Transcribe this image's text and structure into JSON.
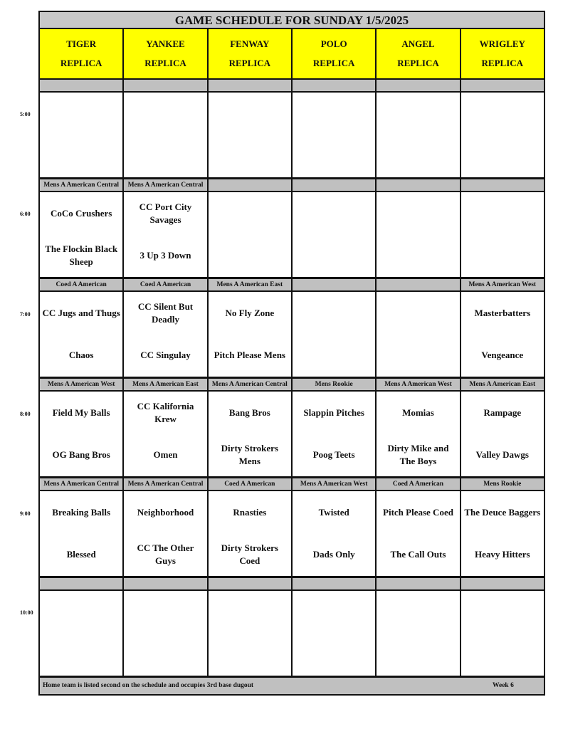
{
  "title": "GAME SCHEDULE FOR SUNDAY 1/5/2025",
  "fields": [
    [
      "TIGER",
      "REPLICA"
    ],
    [
      "YANKEE",
      "REPLICA"
    ],
    [
      "FENWAY",
      "REPLICA"
    ],
    [
      "POLO",
      "REPLICA"
    ],
    [
      "ANGEL",
      "REPLICA"
    ],
    [
      "WRIGLEY",
      "REPLICA"
    ]
  ],
  "slots": [
    {
      "time": "5:00",
      "divisions": [
        "",
        "",
        "",
        "",
        "",
        ""
      ],
      "games": [
        [
          "",
          ""
        ],
        [
          "",
          ""
        ],
        [
          "",
          ""
        ],
        [
          "",
          ""
        ],
        [
          "",
          ""
        ],
        [
          "",
          ""
        ]
      ]
    },
    {
      "time": "6:00",
      "divisions": [
        "Mens A American Central",
        "Mens A American Central",
        "",
        "",
        "",
        ""
      ],
      "games": [
        [
          "CoCo Crushers",
          "The Flockin Black Sheep"
        ],
        [
          "CC Port City Savages",
          "3 Up 3 Down"
        ],
        [
          "",
          ""
        ],
        [
          "",
          ""
        ],
        [
          "",
          ""
        ],
        [
          "",
          ""
        ]
      ]
    },
    {
      "time": "7:00",
      "divisions": [
        "Coed A American",
        "Coed A American",
        "Mens A American East",
        "",
        "",
        "Mens A American West"
      ],
      "games": [
        [
          "CC Jugs and Thugs",
          "Chaos"
        ],
        [
          "CC Silent But Deadly",
          "CC Singulay"
        ],
        [
          "No Fly Zone",
          "Pitch Please Mens"
        ],
        [
          "",
          ""
        ],
        [
          "",
          ""
        ],
        [
          "Masterbatters",
          "Vengeance"
        ]
      ]
    },
    {
      "time": "8:00",
      "divisions": [
        "Mens A American West",
        "Mens A American East",
        "Mens A American Central",
        "Mens Rookie",
        "Mens A American West",
        "Mens A American East"
      ],
      "games": [
        [
          "Field My Balls",
          "OG Bang Bros"
        ],
        [
          "CC Kalifornia Krew",
          "Omen"
        ],
        [
          "Bang Bros",
          "Dirty Strokers Mens"
        ],
        [
          "Slappin Pitches",
          "Poog Teets"
        ],
        [
          "Momias",
          "Dirty Mike and The Boys"
        ],
        [
          "Rampage",
          "Valley Dawgs"
        ]
      ]
    },
    {
      "time": "9:00",
      "divisions": [
        "Mens A American Central",
        "Mens A American Central",
        "Coed A American",
        "Mens A American West",
        "Coed A American",
        "Mens Rookie"
      ],
      "games": [
        [
          "Breaking Balls",
          "Blessed"
        ],
        [
          "Neighborhood",
          "CC The Other Guys"
        ],
        [
          "Rnasties",
          "Dirty Strokers Coed"
        ],
        [
          "Twisted",
          "Dads Only"
        ],
        [
          "Pitch Please Coed",
          "The Call Outs"
        ],
        [
          "The Deuce Baggers",
          "Heavy Hitters"
        ]
      ]
    },
    {
      "time": "10:00",
      "divisions": [
        "",
        "",
        "",
        "",
        "",
        ""
      ],
      "games": [
        [
          "",
          ""
        ],
        [
          "",
          ""
        ],
        [
          "",
          ""
        ],
        [
          "",
          ""
        ],
        [
          "",
          ""
        ],
        [
          "",
          ""
        ]
      ]
    }
  ],
  "footer": {
    "note": "Home team is listed second on the schedule and occupies 3rd base dugout",
    "week": "Week 6"
  }
}
